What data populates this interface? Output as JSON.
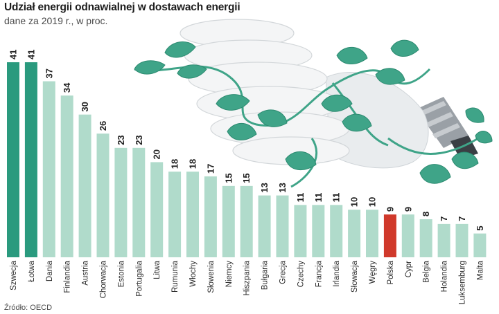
{
  "header": {
    "title": "Udział energii odnawialnej w dostawach energii",
    "subtitle": "dane za 2019 r., w proc."
  },
  "source": "Źródło: OECD",
  "colors": {
    "highlight_top": "#2a9a7e",
    "default": "#b0dbcb",
    "poland": "#d0392b",
    "leaf": "#3fa488",
    "bulb": "#eceff1"
  },
  "chart_data": {
    "type": "bar",
    "orientation": "vertical",
    "categories": [
      "Szwecja",
      "Łotwa",
      "Dania",
      "Finlandia",
      "Austria",
      "Chorwacja",
      "Estonia",
      "Portugalia",
      "Litwa",
      "Rumunia",
      "Włochy",
      "Słowenia",
      "Niemcy",
      "Hiszpania",
      "Bułgaria",
      "Grecja",
      "Czechy",
      "Francja",
      "Irlandia",
      "Słowacja",
      "Węgry",
      "Polska",
      "Cypr",
      "Belgia",
      "Holandia",
      "Luksemburg",
      "Malta"
    ],
    "values": [
      41,
      41,
      37,
      34,
      30,
      26,
      23,
      23,
      20,
      18,
      18,
      17,
      15,
      15,
      13,
      13,
      11,
      11,
      11,
      10,
      10,
      9,
      9,
      8,
      7,
      7,
      5
    ],
    "title": "Udział energii odnawialnej w dostawach energii",
    "subtitle": "dane za 2019 r., w proc.",
    "xlabel": "",
    "ylabel": "",
    "ylim": [
      0,
      41
    ],
    "grid": false,
    "legend": "none",
    "data_labels": true,
    "highlight": {
      "Szwecja": "top",
      "Łotwa": "top",
      "Polska": "poland"
    }
  }
}
